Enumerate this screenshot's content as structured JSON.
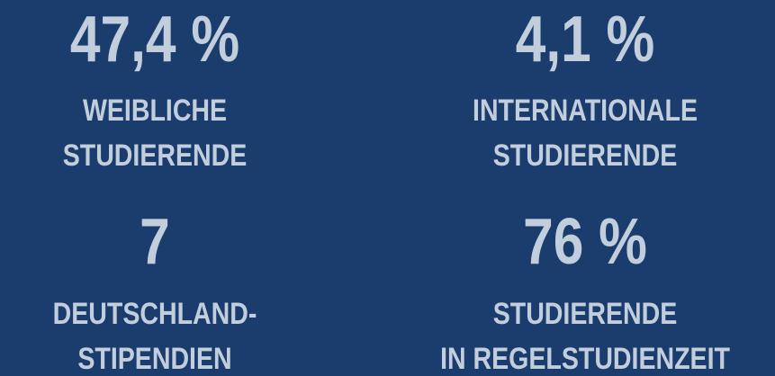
{
  "stats": [
    {
      "value": "47,4 %",
      "label": [
        "WEIBLICHE",
        "STUDIERENDE"
      ]
    },
    {
      "value": "4,1 %",
      "label": [
        "INTERNATIONALE",
        "STUDIERENDE"
      ]
    },
    {
      "value": "7",
      "label": [
        "DEUTSCHLAND-",
        "STIPENDIEN"
      ]
    },
    {
      "value": "76 %",
      "label": [
        "STUDIERENDE",
        "IN REGELSTUDIENZEIT"
      ]
    }
  ]
}
